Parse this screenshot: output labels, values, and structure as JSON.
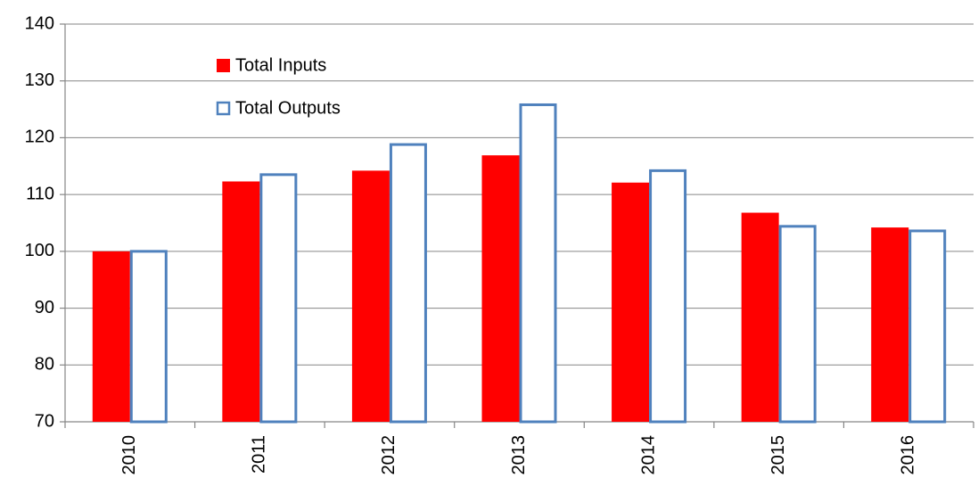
{
  "chart_data": {
    "type": "bar",
    "categories": [
      "2010",
      "2011",
      "2012",
      "2013",
      "2014",
      "2015",
      "2016"
    ],
    "series": [
      {
        "name": "Total Inputs",
        "color": "#ff0000",
        "fill": "#ff0000",
        "values": [
          100,
          112.3,
          114.2,
          116.9,
          112.1,
          106.8,
          104.2
        ]
      },
      {
        "name": "Total Outputs",
        "color": "#4f81bd",
        "fill": "#ffffff",
        "values": [
          100,
          113.5,
          118.8,
          125.8,
          114.2,
          104.4,
          103.6
        ]
      }
    ],
    "ylim": [
      70,
      140
    ],
    "yticks": [
      70,
      80,
      90,
      100,
      110,
      120,
      130,
      140
    ],
    "grid": true,
    "legend": "top-left"
  }
}
